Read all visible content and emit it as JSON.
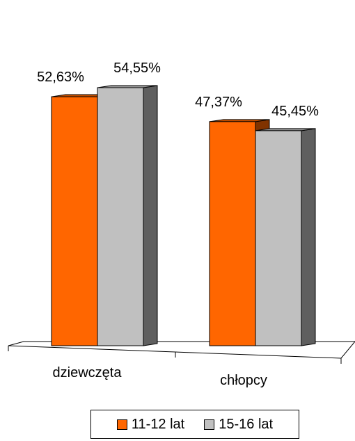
{
  "chart_data": {
    "type": "bar",
    "categories": [
      "dziewczęta",
      "chłopcy"
    ],
    "series": [
      {
        "name": "11-12 lat",
        "values": [
          52.63,
          47.37
        ],
        "labels": [
          "52,63%",
          "47,37%"
        ],
        "color": "#ff6600"
      },
      {
        "name": "15-16 lat",
        "values": [
          54.55,
          45.45
        ],
        "labels": [
          "54,55%",
          "45,45%"
        ],
        "color": "#c0c0c0"
      }
    ],
    "ylim": [
      0,
      60
    ],
    "grid": false,
    "legend_position": "bottom"
  }
}
